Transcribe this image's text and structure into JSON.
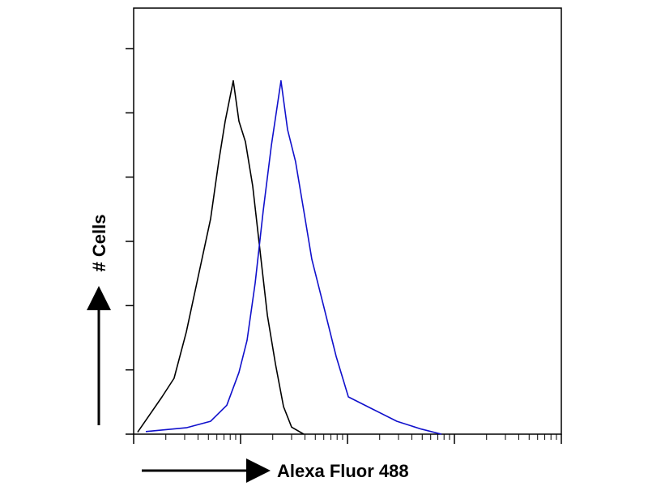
{
  "chart_data": {
    "type": "line",
    "x_label": "Alexa Fluor 488",
    "y_label": "# Cells",
    "xscale": "log",
    "xlim": [
      1,
      10000
    ],
    "xticks": [
      1,
      10,
      100,
      1000,
      10000
    ],
    "ylim": [
      0,
      663
    ],
    "yticks": [
      0,
      100,
      200,
      300,
      400,
      500,
      600
    ],
    "series": [
      {
        "color": "#000000",
        "x": [
          1.09,
          1.84,
          2.39,
          3.11,
          4.04,
          5.24,
          6.24,
          7.18,
          8.55,
          9.66,
          11.1,
          13.0,
          14.9,
          17.8,
          21.2,
          25.2,
          30.0,
          39.0
        ],
        "values": [
          3,
          58,
          87,
          159,
          247,
          335,
          424,
          487,
          550,
          487,
          455,
          386,
          298,
          185,
          109,
          43,
          11,
          0
        ]
      },
      {
        "color": "#1010cc",
        "x": [
          1.3,
          3.11,
          5.24,
          7.43,
          9.66,
          11.5,
          13.7,
          16.3,
          19.4,
          23.9,
          27.5,
          32.7,
          39.0,
          46.4,
          60.3,
          78.3,
          102,
          172,
          290,
          489,
          757
        ],
        "values": [
          4,
          10,
          20,
          45,
          96,
          146,
          235,
          348,
          449,
          550,
          474,
          424,
          348,
          272,
          197,
          121,
          58,
          39,
          20,
          8,
          0
        ]
      }
    ]
  }
}
